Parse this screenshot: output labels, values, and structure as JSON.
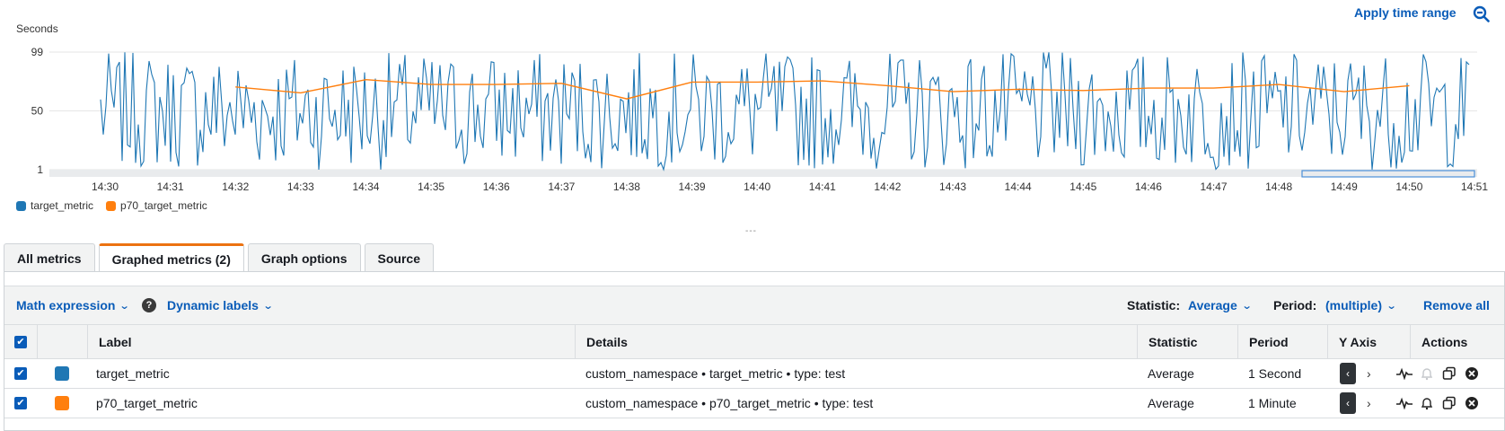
{
  "chart": {
    "apply_label": "Apply time range",
    "icons": {
      "zoom": "zoom-out-icon"
    },
    "chart_data": {
      "type": "line",
      "ylabel": "Seconds",
      "ylim": [
        1,
        99
      ],
      "yticks": [
        "99",
        "50",
        "1"
      ],
      "x": [
        "14:30",
        "14:31",
        "14:32",
        "14:33",
        "14:34",
        "14:35",
        "14:36",
        "14:37",
        "14:38",
        "14:39",
        "14:40",
        "14:41",
        "14:42",
        "14:43",
        "14:44",
        "14:45",
        "14:46",
        "14:47",
        "14:48",
        "14:49",
        "14:50",
        "14:51"
      ],
      "series": [
        {
          "name": "target_metric",
          "color": "#1f77b4",
          "pattern": "noisy values between 1 and 99 sampled every second"
        },
        {
          "name": "p70_target_metric",
          "color": "#ff7f0e",
          "values": [
            null,
            null,
            70,
            65,
            76,
            72,
            72,
            73,
            60,
            74,
            74,
            75,
            71,
            66,
            68,
            67,
            69,
            69,
            72,
            66,
            71,
            null
          ]
        }
      ],
      "grid": true,
      "legend": "bottom-left"
    }
  },
  "legend": [
    {
      "name": "target_metric",
      "color": "#1f77b4"
    },
    {
      "name": "p70_target_metric",
      "color": "#ff7f0e"
    }
  ],
  "resize_handle": "---",
  "tabs": [
    "All metrics",
    "Graphed metrics (2)",
    "Graph options",
    "Source"
  ],
  "toolbar": {
    "math_expression": "Math expression",
    "help": "?",
    "dynamic_labels": "Dynamic labels",
    "statistic_label": "Statistic:",
    "statistic_value": "Average",
    "period_label": "Period:",
    "period_value": "(multiple)",
    "remove_all": "Remove all",
    "chevron": "⌄"
  },
  "table": {
    "columns": [
      "Label",
      "Details",
      "Statistic",
      "Period",
      "Y Axis",
      "Actions"
    ],
    "rows": [
      {
        "label": "target_metric",
        "color": "#1f77b4",
        "details": "custom_namespace • target_metric • type: test",
        "statistic": "Average",
        "period": "1 Second"
      },
      {
        "label": "p70_target_metric",
        "color": "#ff7f0e",
        "details": "custom_namespace • p70_target_metric • type: test",
        "statistic": "Average",
        "period": "1 Minute"
      }
    ],
    "checkbox_mark": "✔",
    "yaxis_left": "‹",
    "yaxis_right": "›"
  }
}
